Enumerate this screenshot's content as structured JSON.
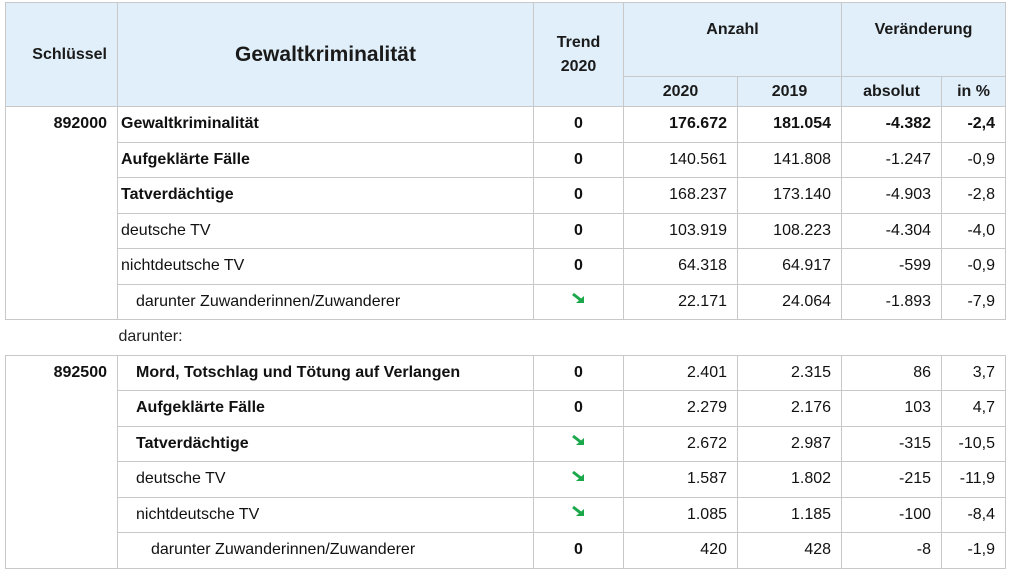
{
  "header": {
    "key": "Schlüssel",
    "title": "Gewaltkriminalität",
    "trend": [
      "Trend",
      "2020"
    ],
    "count": "Anzahl",
    "change": "Veränderung",
    "subheads": [
      "2020",
      "2019",
      "absolut",
      "in %"
    ]
  },
  "table": {
    "groups": [
      {
        "key": "892000",
        "rows": [
          {
            "label": "Gewaltkriminalität",
            "bold": "all",
            "indent": 0,
            "trend": "0",
            "values": [
              "176.672",
              "181.054",
              "-4.382",
              "-2,4"
            ]
          },
          {
            "label": "Aufgeklärte Fälle",
            "bold": "label",
            "indent": 0,
            "trend": "0",
            "values": [
              "140.561",
              "141.808",
              "-1.247",
              "-0,9"
            ]
          },
          {
            "label": "Tatverdächtige",
            "bold": "label",
            "indent": 0,
            "trend": "0",
            "values": [
              "168.237",
              "173.140",
              "-4.903",
              "-2,8"
            ]
          },
          {
            "label": "deutsche TV",
            "bold": "none",
            "indent": 0,
            "trend": "0",
            "values": [
              "103.919",
              "108.223",
              "-4.304",
              "-4,0"
            ]
          },
          {
            "label": "nichtdeutsche TV",
            "bold": "none",
            "indent": 0,
            "trend": "0",
            "values": [
              "64.318",
              "64.917",
              "-599",
              "-0,9"
            ]
          },
          {
            "label": "darunter Zuwanderinnen/Zuwanderer",
            "bold": "none",
            "indent": 1,
            "trend": null,
            "values": [
              "22.171",
              "24.064",
              "-1.893",
              "-7,9"
            ]
          }
        ]
      },
      {
        "note": "darunter:"
      },
      {
        "key": "892500",
        "rows": [
          {
            "label": "Mord, Totschlag und Tötung auf Verlangen",
            "bold": "label",
            "indent": 1,
            "trend": "0",
            "values": [
              "2.401",
              "2.315",
              "86",
              "3,7"
            ]
          },
          {
            "label": "Aufgeklärte Fälle",
            "bold": "label",
            "indent": 1,
            "trend": "0",
            "values": [
              "2.279",
              "2.176",
              "103",
              "4,7"
            ]
          },
          {
            "label": "Tatverdächtige",
            "bold": "label",
            "indent": 1,
            "trend": null,
            "values": [
              "2.672",
              "2.987",
              "-315",
              "-10,5"
            ]
          },
          {
            "label": "deutsche TV",
            "bold": "none",
            "indent": 1,
            "trend": null,
            "values": [
              "1.587",
              "1.802",
              "-215",
              "-11,9"
            ]
          },
          {
            "label": "nichtdeutsche TV",
            "bold": "none",
            "indent": 1,
            "trend": null,
            "values": [
              "1.085",
              "1.185",
              "-100",
              "-8,4"
            ]
          },
          {
            "label": "darunter Zuwanderinnen/Zuwanderer",
            "bold": "none",
            "indent": 2,
            "trend": "0",
            "values": [
              "420",
              "428",
              "-8",
              "-1,9"
            ]
          }
        ]
      }
    ]
  }
}
